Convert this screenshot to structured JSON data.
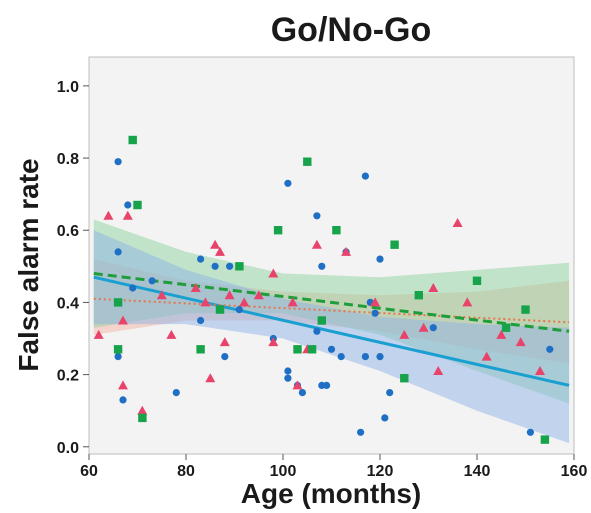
{
  "chart_data": {
    "type": "scatter",
    "title": "Go/No-Go",
    "xlabel": "Age (months)",
    "ylabel": "False alarm rate",
    "xlim": [
      60,
      160
    ],
    "ylim": [
      -0.02,
      1.08
    ],
    "xticks": [
      60,
      80,
      100,
      120,
      140,
      160
    ],
    "yticks": [
      0.0,
      0.2,
      0.4,
      0.6,
      0.8,
      1.0
    ],
    "xtick_labels": [
      "60",
      "80",
      "100",
      "120",
      "140",
      "160"
    ],
    "ytick_labels": [
      "0.0",
      "0.2",
      "0.4",
      "0.6",
      "0.8",
      "1.0"
    ],
    "grid": false,
    "colors": {
      "blue": "#1f6fc5",
      "red": "#e8436a",
      "green": "#16a34a",
      "fit_blue": "#1a9fd1",
      "fit_red": "#e8754a",
      "fit_green": "#1e9e3a",
      "band_blue": "#8fb4e8",
      "band_red": "#f3b3a3",
      "band_green": "#8fd3a0",
      "plot_bg": "#f3f3f3"
    },
    "series": [
      {
        "marker": "circle",
        "color": "blue",
        "points": [
          [
            66,
            0.79
          ],
          [
            66,
            0.54
          ],
          [
            66,
            0.25
          ],
          [
            67,
            0.13
          ],
          [
            68,
            0.67
          ],
          [
            69,
            0.44
          ],
          [
            73,
            0.46
          ],
          [
            78,
            0.15
          ],
          [
            83,
            0.52
          ],
          [
            83,
            0.35
          ],
          [
            86,
            0.5
          ],
          [
            88,
            0.25
          ],
          [
            89,
            0.5
          ],
          [
            91,
            0.38
          ],
          [
            98,
            0.3
          ],
          [
            101,
            0.73
          ],
          [
            101,
            0.21
          ],
          [
            101,
            0.19
          ],
          [
            103,
            0.17
          ],
          [
            104,
            0.15
          ],
          [
            106,
            0.27
          ],
          [
            107,
            0.32
          ],
          [
            107,
            0.64
          ],
          [
            108,
            0.5
          ],
          [
            108,
            0.17
          ],
          [
            109,
            0.17
          ],
          [
            110,
            0.27
          ],
          [
            112,
            0.25
          ],
          [
            113,
            0.54
          ],
          [
            116,
            0.04
          ],
          [
            117,
            0.75
          ],
          [
            117,
            0.25
          ],
          [
            118,
            0.4
          ],
          [
            119,
            0.37
          ],
          [
            120,
            0.52
          ],
          [
            120,
            0.25
          ],
          [
            122,
            0.15
          ],
          [
            131,
            0.33
          ],
          [
            151,
            0.04
          ],
          [
            155,
            0.27
          ],
          [
            121,
            0.08
          ]
        ]
      },
      {
        "marker": "triangle",
        "color": "red",
        "points": [
          [
            62,
            0.31
          ],
          [
            64,
            0.64
          ],
          [
            67,
            0.35
          ],
          [
            67,
            0.17
          ],
          [
            68,
            0.64
          ],
          [
            71,
            0.1
          ],
          [
            75,
            0.42
          ],
          [
            77,
            0.31
          ],
          [
            82,
            0.44
          ],
          [
            84,
            0.4
          ],
          [
            85,
            0.19
          ],
          [
            86,
            0.56
          ],
          [
            87,
            0.54
          ],
          [
            88,
            0.29
          ],
          [
            89,
            0.42
          ],
          [
            92,
            0.4
          ],
          [
            95,
            0.42
          ],
          [
            98,
            0.48
          ],
          [
            98,
            0.29
          ],
          [
            102,
            0.4
          ],
          [
            103,
            0.17
          ],
          [
            105,
            0.27
          ],
          [
            107,
            0.56
          ],
          [
            113,
            0.54
          ],
          [
            119,
            0.4
          ],
          [
            125,
            0.31
          ],
          [
            129,
            0.33
          ],
          [
            131,
            0.44
          ],
          [
            132,
            0.21
          ],
          [
            136,
            0.62
          ],
          [
            145,
            0.31
          ],
          [
            149,
            0.29
          ],
          [
            153,
            0.21
          ],
          [
            138,
            0.4
          ],
          [
            142,
            0.25
          ]
        ]
      },
      {
        "marker": "square",
        "color": "green",
        "points": [
          [
            66,
            0.27
          ],
          [
            66,
            0.4
          ],
          [
            69,
            0.85
          ],
          [
            70,
            0.67
          ],
          [
            71,
            0.08
          ],
          [
            83,
            0.27
          ],
          [
            87,
            0.38
          ],
          [
            91,
            0.5
          ],
          [
            99,
            0.6
          ],
          [
            103,
            0.27
          ],
          [
            105,
            0.79
          ],
          [
            106,
            0.27
          ],
          [
            108,
            0.35
          ],
          [
            111,
            0.6
          ],
          [
            123,
            0.56
          ],
          [
            125,
            0.19
          ],
          [
            128,
            0.42
          ],
          [
            140,
            0.46
          ],
          [
            146,
            0.33
          ],
          [
            150,
            0.38
          ],
          [
            154,
            0.02
          ]
        ]
      }
    ],
    "fit_lines": [
      {
        "color": "fit_blue",
        "style": "solid",
        "x": [
          61,
          159
        ],
        "y": [
          0.47,
          0.17
        ]
      },
      {
        "color": "fit_red",
        "style": "dotted",
        "x": [
          61,
          159
        ],
        "y": [
          0.41,
          0.345
        ]
      },
      {
        "color": "fit_green",
        "style": "dashed",
        "x": [
          61,
          159
        ],
        "y": [
          0.48,
          0.32
        ]
      }
    ],
    "confidence_bands": [
      {
        "color": "band_red",
        "x": [
          61,
          80,
          100,
          120,
          140,
          159
        ],
        "upper": [
          0.52,
          0.46,
          0.43,
          0.42,
          0.43,
          0.46
        ],
        "lower": [
          0.31,
          0.35,
          0.35,
          0.32,
          0.27,
          0.23
        ]
      },
      {
        "color": "band_green",
        "x": [
          61,
          80,
          100,
          120,
          140,
          159
        ],
        "upper": [
          0.63,
          0.54,
          0.48,
          0.47,
          0.49,
          0.51
        ],
        "lower": [
          0.33,
          0.37,
          0.37,
          0.31,
          0.21,
          0.12
        ]
      },
      {
        "color": "band_blue",
        "x": [
          61,
          80,
          100,
          120,
          140,
          159
        ],
        "upper": [
          0.6,
          0.49,
          0.41,
          0.36,
          0.34,
          0.33
        ],
        "lower": [
          0.34,
          0.34,
          0.3,
          0.21,
          0.1,
          0.01
        ]
      }
    ]
  }
}
